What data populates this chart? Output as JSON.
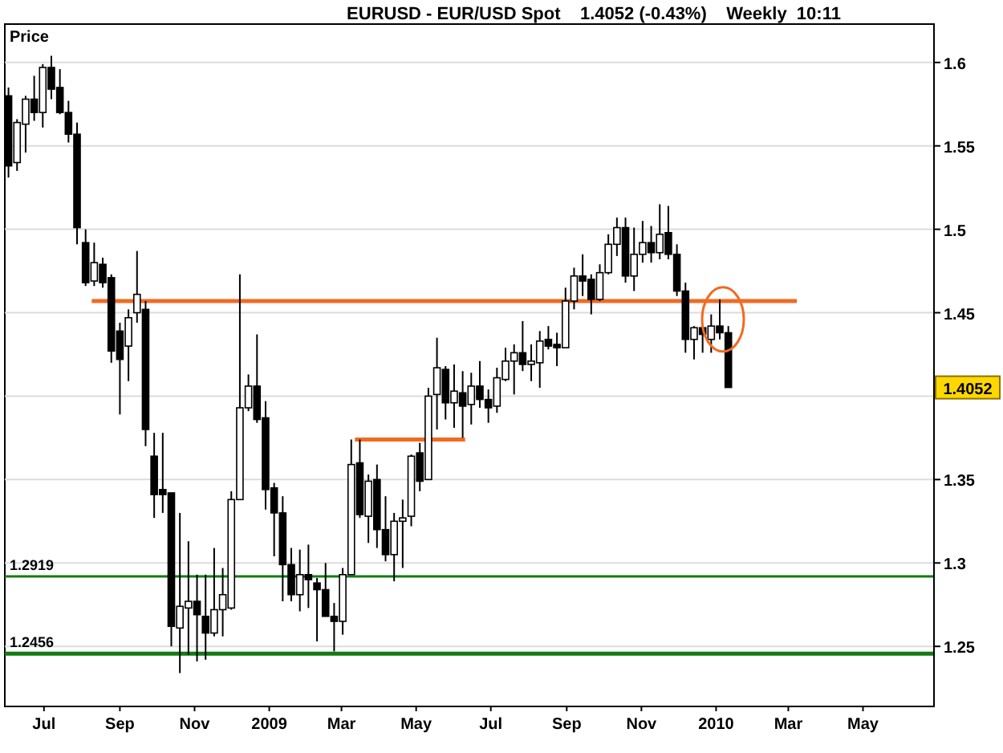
{
  "chart_data": {
    "type": "candlestick",
    "title": "EURUSD - EUR/USD Spot    1.4052 (-0.43%)    Weekly  10:11",
    "ylabel": "Price",
    "x": [
      "2008-06-02",
      "2008-06-09",
      "2008-06-16",
      "2008-06-23",
      "2008-06-30",
      "2008-07-07",
      "2008-07-14",
      "2008-07-21",
      "2008-07-28",
      "2008-08-04",
      "2008-08-11",
      "2008-08-18",
      "2008-08-25",
      "2008-09-01",
      "2008-09-08",
      "2008-09-15",
      "2008-09-22",
      "2008-09-29",
      "2008-10-06",
      "2008-10-13",
      "2008-10-20",
      "2008-10-27",
      "2008-11-03",
      "2008-11-10",
      "2008-11-17",
      "2008-11-24",
      "2008-12-01",
      "2008-12-08",
      "2008-12-15",
      "2008-12-22",
      "2008-12-29",
      "2009-01-05",
      "2009-01-12",
      "2009-01-19",
      "2009-01-26",
      "2009-02-02",
      "2009-02-09",
      "2009-02-16",
      "2009-02-23",
      "2009-03-02",
      "2009-03-09",
      "2009-03-16",
      "2009-03-23",
      "2009-03-30",
      "2009-04-06",
      "2009-04-13",
      "2009-04-20",
      "2009-04-27",
      "2009-05-04",
      "2009-05-11",
      "2009-05-18",
      "2009-05-25",
      "2009-06-01",
      "2009-06-08",
      "2009-06-15",
      "2009-06-22",
      "2009-06-29",
      "2009-07-06",
      "2009-07-13",
      "2009-07-20",
      "2009-07-27",
      "2009-08-03",
      "2009-08-10",
      "2009-08-17",
      "2009-08-24",
      "2009-08-31",
      "2009-09-07",
      "2009-09-14",
      "2009-09-21",
      "2009-09-28",
      "2009-10-05",
      "2009-10-12",
      "2009-10-19",
      "2009-10-26",
      "2009-11-02",
      "2009-11-09",
      "2009-11-16",
      "2009-11-23",
      "2009-11-30",
      "2009-12-07",
      "2009-12-14",
      "2009-12-21",
      "2009-12-28",
      "2010-01-04",
      "2010-01-11"
    ],
    "ohlc": [
      [
        1.58,
        1.585,
        1.531,
        1.538
      ],
      [
        1.54,
        1.566,
        1.535,
        1.564
      ],
      [
        1.563,
        1.58,
        1.546,
        1.578
      ],
      [
        1.578,
        1.592,
        1.565,
        1.57
      ],
      [
        1.57,
        1.599,
        1.561,
        1.597
      ],
      [
        1.597,
        1.604,
        1.578,
        1.584
      ],
      [
        1.585,
        1.596,
        1.569,
        1.57
      ],
      [
        1.57,
        1.577,
        1.552,
        1.557
      ],
      [
        1.557,
        1.564,
        1.491,
        1.501
      ],
      [
        1.492,
        1.5,
        1.466,
        1.468
      ],
      [
        1.469,
        1.492,
        1.466,
        1.48
      ],
      [
        1.479,
        1.483,
        1.465,
        1.468
      ],
      [
        1.471,
        1.473,
        1.42,
        1.427
      ],
      [
        1.439,
        1.444,
        1.389,
        1.422
      ],
      [
        1.43,
        1.452,
        1.409,
        1.447
      ],
      [
        1.45,
        1.487,
        1.444,
        1.461
      ],
      [
        1.452,
        1.457,
        1.37,
        1.38
      ],
      [
        1.364,
        1.378,
        1.327,
        1.341
      ],
      [
        1.344,
        1.378,
        1.33,
        1.341
      ],
      [
        1.342,
        1.342,
        1.25,
        1.262
      ],
      [
        1.261,
        1.33,
        1.234,
        1.274
      ],
      [
        1.273,
        1.313,
        1.245,
        1.277
      ],
      [
        1.277,
        1.293,
        1.241,
        1.269
      ],
      [
        1.268,
        1.293,
        1.242,
        1.258
      ],
      [
        1.258,
        1.309,
        1.256,
        1.272
      ],
      [
        1.272,
        1.297,
        1.256,
        1.281
      ],
      [
        1.273,
        1.343,
        1.272,
        1.338
      ],
      [
        1.338,
        1.473,
        1.338,
        1.393
      ],
      [
        1.393,
        1.413,
        1.391,
        1.406
      ],
      [
        1.406,
        1.437,
        1.384,
        1.386
      ],
      [
        1.387,
        1.397,
        1.332,
        1.344
      ],
      [
        1.345,
        1.348,
        1.304,
        1.33
      ],
      [
        1.33,
        1.34,
        1.277,
        1.299
      ],
      [
        1.299,
        1.309,
        1.277,
        1.281
      ],
      [
        1.281,
        1.308,
        1.271,
        1.293
      ],
      [
        1.293,
        1.311,
        1.273,
        1.29
      ],
      [
        1.288,
        1.291,
        1.253,
        1.284
      ],
      [
        1.284,
        1.3,
        1.268,
        1.268
      ],
      [
        1.268,
        1.276,
        1.247,
        1.265
      ],
      [
        1.265,
        1.297,
        1.257,
        1.293
      ],
      [
        1.293,
        1.374,
        1.293,
        1.359
      ],
      [
        1.36,
        1.374,
        1.327,
        1.329
      ],
      [
        1.328,
        1.353,
        1.312,
        1.349
      ],
      [
        1.35,
        1.359,
        1.309,
        1.32
      ],
      [
        1.32,
        1.34,
        1.301,
        1.305
      ],
      [
        1.305,
        1.33,
        1.289,
        1.325
      ],
      [
        1.325,
        1.338,
        1.297,
        1.327
      ],
      [
        1.328,
        1.365,
        1.322,
        1.364
      ],
      [
        1.366,
        1.372,
        1.343,
        1.349
      ],
      [
        1.35,
        1.405,
        1.35,
        1.4
      ],
      [
        1.401,
        1.435,
        1.38,
        1.417
      ],
      [
        1.416,
        1.418,
        1.386,
        1.396
      ],
      [
        1.396,
        1.419,
        1.381,
        1.403
      ],
      [
        1.402,
        1.415,
        1.375,
        1.394
      ],
      [
        1.395,
        1.414,
        1.383,
        1.406
      ],
      [
        1.406,
        1.421,
        1.393,
        1.398
      ],
      [
        1.398,
        1.404,
        1.384,
        1.393
      ],
      [
        1.394,
        1.417,
        1.39,
        1.411
      ],
      [
        1.41,
        1.429,
        1.409,
        1.421
      ],
      [
        1.421,
        1.431,
        1.401,
        1.426
      ],
      [
        1.426,
        1.445,
        1.415,
        1.419
      ],
      [
        1.419,
        1.431,
        1.409,
        1.421
      ],
      [
        1.42,
        1.439,
        1.405,
        1.433
      ],
      [
        1.434,
        1.442,
        1.428,
        1.43
      ],
      [
        1.431,
        1.438,
        1.418,
        1.429
      ],
      [
        1.429,
        1.465,
        1.429,
        1.457
      ],
      [
        1.457,
        1.477,
        1.452,
        1.472
      ],
      [
        1.472,
        1.485,
        1.46,
        1.469
      ],
      [
        1.47,
        1.473,
        1.449,
        1.458
      ],
      [
        1.458,
        1.479,
        1.457,
        1.474
      ],
      [
        1.474,
        1.497,
        1.473,
        1.491
      ],
      [
        1.491,
        1.507,
        1.484,
        1.501
      ],
      [
        1.501,
        1.507,
        1.468,
        1.472
      ],
      [
        1.472,
        1.501,
        1.463,
        1.485
      ],
      [
        1.485,
        1.505,
        1.48,
        1.492
      ],
      [
        1.492,
        1.502,
        1.48,
        1.486
      ],
      [
        1.486,
        1.515,
        1.482,
        1.497
      ],
      [
        1.498,
        1.514,
        1.482,
        1.485
      ],
      [
        1.485,
        1.491,
        1.46,
        1.463
      ],
      [
        1.463,
        1.468,
        1.426,
        1.434
      ],
      [
        1.434,
        1.442,
        1.422,
        1.441
      ],
      [
        1.441,
        1.442,
        1.426,
        1.437
      ],
      [
        1.434,
        1.449,
        1.426,
        1.442
      ],
      [
        1.442,
        1.458,
        1.434,
        1.438
      ],
      [
        1.438,
        1.442,
        1.4052,
        1.4052
      ]
    ],
    "series": [
      {
        "type": "line",
        "color": "#f26a21",
        "x": [
          "2008-08-09",
          "2010-03-08"
        ],
        "values": [
          1.457,
          1.457
        ]
      },
      {
        "type": "line",
        "color": "#f26a21",
        "x": [
          "2009-03-12",
          "2009-06-10"
        ],
        "values": [
          1.374,
          1.374
        ]
      }
    ],
    "ref_lines": [
      {
        "axis": "y",
        "value": 1.2919,
        "label": "1.2919",
        "color": "#137a13"
      },
      {
        "axis": "y",
        "value": 1.2456,
        "label": "1.2456",
        "color": "#137a13"
      }
    ],
    "annotations": [
      {
        "text": "1.4052",
        "y": 1.4052
      }
    ],
    "xlim": [
      "2008-05-30",
      "2010-06-28"
    ],
    "xticks": [
      {
        "value": "2008-07-01",
        "label": "Jul"
      },
      {
        "value": "2008-09-01",
        "label": "Sep"
      },
      {
        "value": "2008-11-01",
        "label": "Nov"
      },
      {
        "value": "2009-01-01",
        "label": "2009"
      },
      {
        "value": "2009-03-01",
        "label": "Mar"
      },
      {
        "value": "2009-05-01",
        "label": "May"
      },
      {
        "value": "2009-07-01",
        "label": "Jul"
      },
      {
        "value": "2009-09-01",
        "label": "Sep"
      },
      {
        "value": "2009-11-01",
        "label": "Nov"
      },
      {
        "value": "2010-01-01",
        "label": "2010"
      },
      {
        "value": "2010-03-01",
        "label": "Mar"
      },
      {
        "value": "2010-05-01",
        "label": "May"
      }
    ],
    "ylim": [
      1.214,
      1.623
    ],
    "yticks": [
      1.25,
      1.3,
      1.35,
      {
        "value": 1.4,
        "label": null
      },
      1.45,
      1.5,
      1.55,
      1.6
    ],
    "grid": "y",
    "marker": "none",
    "line_style": "solid"
  }
}
